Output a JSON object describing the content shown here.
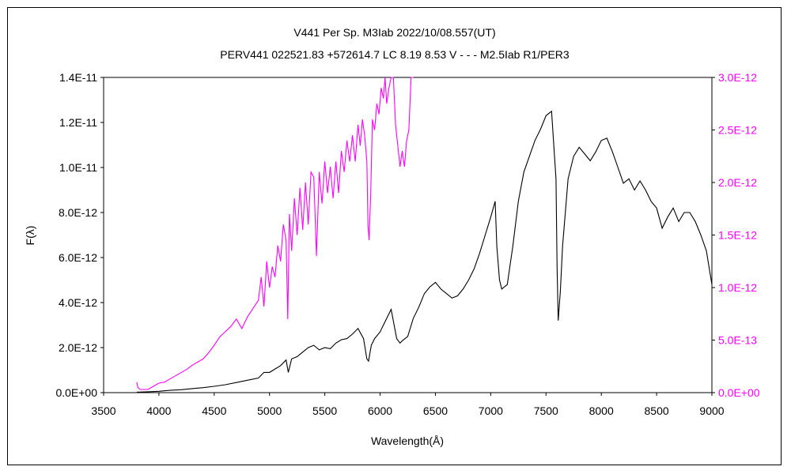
{
  "chart_data": {
    "type": "line",
    "title": "V441 Per   Sp. M3Iab   2022/10/08.557(UT)",
    "subtitle": "PERV441 022521.83 +572614.7 LC 8.19 8.53 V - - - M2.5Iab R1/PER3",
    "xlabel": "Wavelength(Å)",
    "ylabel": "F(λ)",
    "xlim": [
      3500,
      9000
    ],
    "ylim": [
      0,
      1.4e-11
    ],
    "y2lim": [
      0,
      3e-12
    ],
    "grid": false,
    "x_ticks": [
      "3500",
      "4000",
      "4500",
      "5000",
      "5500",
      "6000",
      "6500",
      "7000",
      "7500",
      "8000",
      "8500",
      "9000"
    ],
    "y_ticks": [
      "0.0E+00",
      "2.0E-12",
      "4.0E-12",
      "6.0E-12",
      "8.0E-12",
      "1.0E-11",
      "1.2E-11",
      "1.4E-11"
    ],
    "y2_ticks": [
      "0.0E+00",
      "5.0E-13",
      "1.0E-12",
      "1.5E-12",
      "2.0E-12",
      "2.5E-12",
      "3.0E-12"
    ],
    "series": [
      {
        "axis": "left",
        "color": "#000000",
        "x": [
          3800,
          3900,
          4000,
          4100,
          4200,
          4300,
          4400,
          4500,
          4600,
          4700,
          4800,
          4900,
          4950,
          5000,
          5050,
          5100,
          5150,
          5170,
          5200,
          5250,
          5300,
          5350,
          5400,
          5450,
          5500,
          5550,
          5600,
          5650,
          5700,
          5750,
          5800,
          5850,
          5880,
          5895,
          5920,
          5950,
          6000,
          6050,
          6100,
          6150,
          6180,
          6200,
          6250,
          6300,
          6350,
          6400,
          6450,
          6500,
          6550,
          6600,
          6650,
          6700,
          6750,
          6800,
          6850,
          6900,
          6950,
          7000,
          7040,
          7055,
          7080,
          7100,
          7150,
          7200,
          7250,
          7300,
          7350,
          7400,
          7450,
          7500,
          7550,
          7590,
          7600,
          7610,
          7630,
          7650,
          7700,
          7750,
          7800,
          7850,
          7900,
          7950,
          8000,
          8050,
          8100,
          8150,
          8200,
          8250,
          8300,
          8350,
          8400,
          8450,
          8500,
          8550,
          8600,
          8650,
          8700,
          8750,
          8800,
          8850,
          8900,
          8950,
          9000
        ],
        "y": [
          2e-14,
          4e-14,
          6e-14,
          1e-13,
          1.3e-13,
          1.8e-13,
          2.2e-13,
          2.8e-13,
          3.5e-13,
          4.5e-13,
          5.5e-13,
          6.5e-13,
          9e-13,
          9e-13,
          1.05e-12,
          1.2e-12,
          1.45e-12,
          9e-13,
          1.5e-12,
          1.6e-12,
          1.8e-12,
          2e-12,
          2.1e-12,
          1.9e-12,
          2e-12,
          1.95e-12,
          2.2e-12,
          2.35e-12,
          2.4e-12,
          2.6e-12,
          2.85e-12,
          2.4e-12,
          1.5e-12,
          1.4e-12,
          2.1e-12,
          2.4e-12,
          2.7e-12,
          3.2e-12,
          3.7e-12,
          2.4e-12,
          2.2e-12,
          2.3e-12,
          2.5e-12,
          3.3e-12,
          3.8e-12,
          4.4e-12,
          4.7e-12,
          4.9e-12,
          4.6e-12,
          4.4e-12,
          4.2e-12,
          4.3e-12,
          4.6e-12,
          5e-12,
          5.5e-12,
          6.2e-12,
          7e-12,
          7.8e-12,
          8.5e-12,
          6.5e-12,
          5e-12,
          4.6e-12,
          4.8e-12,
          6.5e-12,
          8.5e-12,
          9.8e-12,
          1.05e-11,
          1.12e-11,
          1.17e-11,
          1.23e-11,
          1.25e-11,
          9.5e-12,
          5.5e-12,
          3.2e-12,
          4.5e-12,
          6.5e-12,
          9.5e-12,
          1.05e-11,
          1.09e-11,
          1.06e-11,
          1.03e-11,
          1.07e-11,
          1.12e-11,
          1.13e-11,
          1.07e-11,
          1e-11,
          9.3e-12,
          9.5e-12,
          9e-12,
          9.4e-12,
          9e-12,
          8.5e-12,
          8.2e-12,
          7.3e-12,
          7.8e-12,
          8.2e-12,
          7.6e-12,
          8e-12,
          8e-12,
          7.6e-12,
          7e-12,
          6.3e-12,
          4.8e-12
        ]
      },
      {
        "axis": "right",
        "color": "#ff00ff",
        "x": [
          3800,
          3810,
          3830,
          3850,
          3900,
          3950,
          4000,
          4050,
          4100,
          4150,
          4200,
          4250,
          4300,
          4350,
          4400,
          4450,
          4500,
          4550,
          4600,
          4650,
          4700,
          4750,
          4800,
          4850,
          4900,
          4925,
          4950,
          4975,
          5000,
          5025,
          5050,
          5075,
          5100,
          5125,
          5150,
          5165,
          5180,
          5200,
          5225,
          5250,
          5275,
          5300,
          5325,
          5350,
          5375,
          5400,
          5425,
          5450,
          5475,
          5500,
          5525,
          5550,
          5575,
          5600,
          5625,
          5650,
          5675,
          5700,
          5725,
          5750,
          5775,
          5800,
          5820,
          5840,
          5860,
          5880,
          5890,
          5900,
          5915,
          5930,
          5950,
          5970,
          5990,
          6010,
          6030,
          6045,
          6060,
          6080,
          6100,
          6120,
          6140,
          6160,
          6180,
          6200,
          6220,
          6240,
          6260,
          6280,
          6300
        ],
        "y": [
          1e-13,
          5e-14,
          3e-14,
          3e-14,
          3e-14,
          6e-14,
          9e-14,
          1e-13,
          1.3e-13,
          1.6e-13,
          1.9e-13,
          2.2e-13,
          2.6e-13,
          2.9e-13,
          3.2e-13,
          3.8e-13,
          4.5e-13,
          5.3e-13,
          5.8e-13,
          6.3e-13,
          7e-13,
          6.1e-13,
          7.2e-13,
          8e-13,
          8.8e-13,
          1.1e-12,
          8.2e-13,
          1.25e-12,
          1e-12,
          1.2e-12,
          1.1e-12,
          1.4e-12,
          1.25e-12,
          1.6e-12,
          1.45e-12,
          7e-13,
          1.7e-12,
          1.35e-12,
          1.85e-12,
          1.5e-12,
          1.95e-12,
          1.55e-12,
          2e-12,
          1.6e-12,
          2.1e-12,
          2.05e-12,
          1.3e-12,
          2.1e-12,
          1.8e-12,
          2.2e-12,
          1.9e-12,
          2.15e-12,
          1.85e-12,
          2.2e-12,
          1.9e-12,
          2.3e-12,
          2.1e-12,
          2.4e-12,
          2.2e-12,
          2.45e-12,
          2.2e-12,
          2.55e-12,
          2.35e-12,
          2.6e-12,
          2.45e-12,
          2.2e-12,
          1.6e-12,
          1.45e-12,
          1.9e-12,
          2.6e-12,
          2.5e-12,
          2.75e-12,
          2.65e-12,
          2.9e-12,
          2.8e-12,
          3e-12,
          2.75e-12,
          2.9e-12,
          3e-12,
          3e-12,
          2.55e-12,
          2.35e-12,
          2.15e-12,
          2.3e-12,
          2.15e-12,
          2.4e-12,
          2.5e-12,
          3e-12,
          3e-12
        ]
      }
    ]
  }
}
